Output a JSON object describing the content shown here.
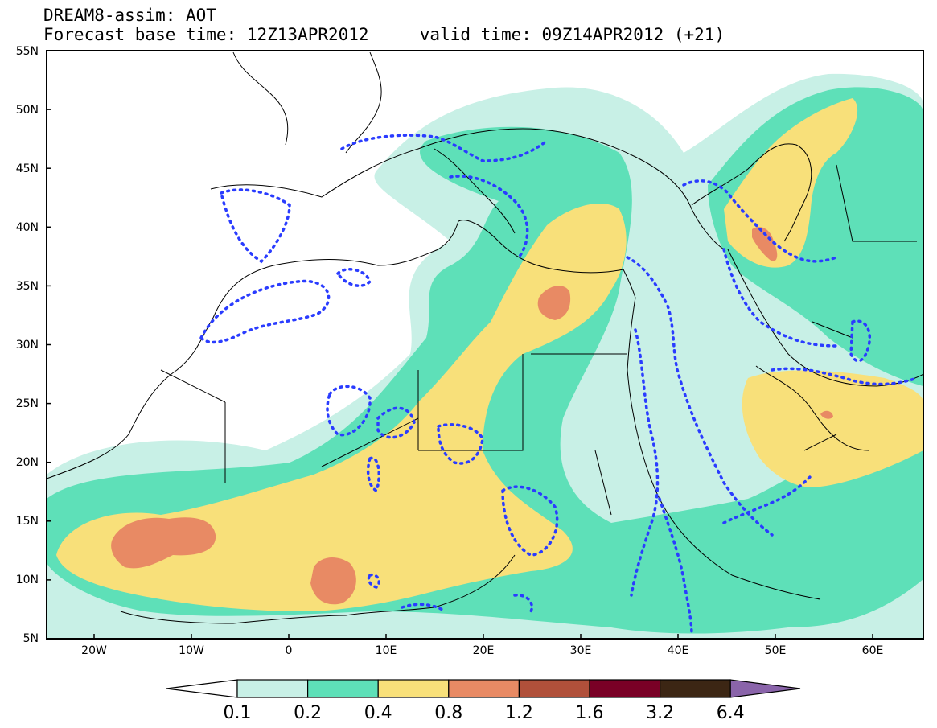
{
  "title": {
    "line1": "DREAM8-assim: AOT",
    "line2": "Forecast base time: 12Z13APR2012     valid time: 09Z14APR2012 (+21)"
  },
  "lat_labels": [
    "55N",
    "50N",
    "45N",
    "40N",
    "35N",
    "30N",
    "25N",
    "20N",
    "15N",
    "10N",
    "5N"
  ],
  "lon_labels": [
    "20W",
    "10W",
    "0",
    "10E",
    "20E",
    "30E",
    "40E",
    "50E",
    "60E"
  ],
  "colorbar": {
    "levels": [
      "0.1",
      "0.2",
      "0.4",
      "0.8",
      "1.2",
      "1.6",
      "3.2",
      "6.4"
    ],
    "colors": [
      "#ffffff",
      "#c8f0e6",
      "#5ee0b8",
      "#f8e07a",
      "#e88a64",
      "#b0503a",
      "#7a0026",
      "#3c2614",
      "#8a64aa"
    ]
  },
  "colors": {
    "aot_0_1": "#c8f0e6",
    "aot_0_2": "#5ee0b8",
    "aot_0_4": "#f8e07a",
    "aot_0_8": "#e88a64",
    "observation_contour": "#2a3cff",
    "coastline": "#000000"
  }
}
